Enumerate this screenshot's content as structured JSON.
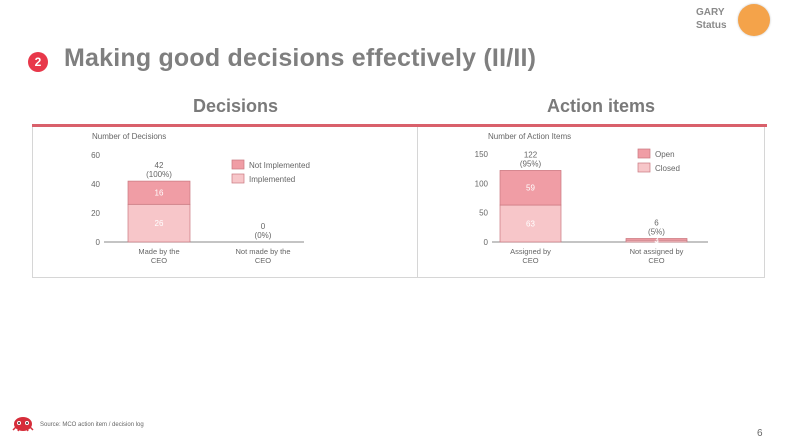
{
  "header": {
    "status_label_line1": "GARY",
    "status_label_line2": "Status",
    "status_color": "#f4a34a",
    "section_number": "2",
    "title": "Making good decisions effectively (II/II)",
    "accent_color": "#e8384a"
  },
  "sections": {
    "left_title": "Decisions",
    "right_title": "Action items"
  },
  "chart_data": [
    {
      "type": "bar",
      "stacked": true,
      "title": "Number of Decisions",
      "categories": [
        "Made by the CEO",
        "Not made by the CEO"
      ],
      "series": [
        {
          "name": "Implemented",
          "values": [
            26,
            0
          ],
          "color": "#f7c6c9"
        },
        {
          "name": "Not Implemented",
          "values": [
            16,
            0
          ],
          "color": "#f09da5"
        }
      ],
      "totals": [
        "42",
        "0"
      ],
      "total_pcts": [
        "(100%)",
        "(0%)"
      ],
      "segment_labels": [
        [
          "26",
          ""
        ],
        [
          "16",
          ""
        ]
      ],
      "ylim": [
        0,
        60
      ],
      "yticks": [
        0,
        20,
        40,
        60
      ],
      "legend": [
        "Not Implemented",
        "Implemented"
      ],
      "legend_position": "right"
    },
    {
      "type": "bar",
      "stacked": true,
      "title": "Number of Action Items",
      "categories": [
        "Assigned by CEO",
        "Not assigned by CEO"
      ],
      "series": [
        {
          "name": "Closed",
          "values": [
            63,
            3
          ],
          "color": "#f7c6c9"
        },
        {
          "name": "Open",
          "values": [
            59,
            3
          ],
          "color": "#f09da5"
        }
      ],
      "totals": [
        "122",
        "6"
      ],
      "total_pcts": [
        "(95%)",
        "(5%)"
      ],
      "segment_labels": [
        [
          "63",
          "3"
        ],
        [
          "59",
          "3"
        ]
      ],
      "ylim": [
        0,
        150
      ],
      "yticks": [
        0,
        50,
        100,
        150
      ],
      "legend": [
        "Open",
        "Closed"
      ],
      "legend_position": "right"
    }
  ],
  "footer": {
    "source": "Source: MCO action item / decision log",
    "page_number": "6"
  }
}
